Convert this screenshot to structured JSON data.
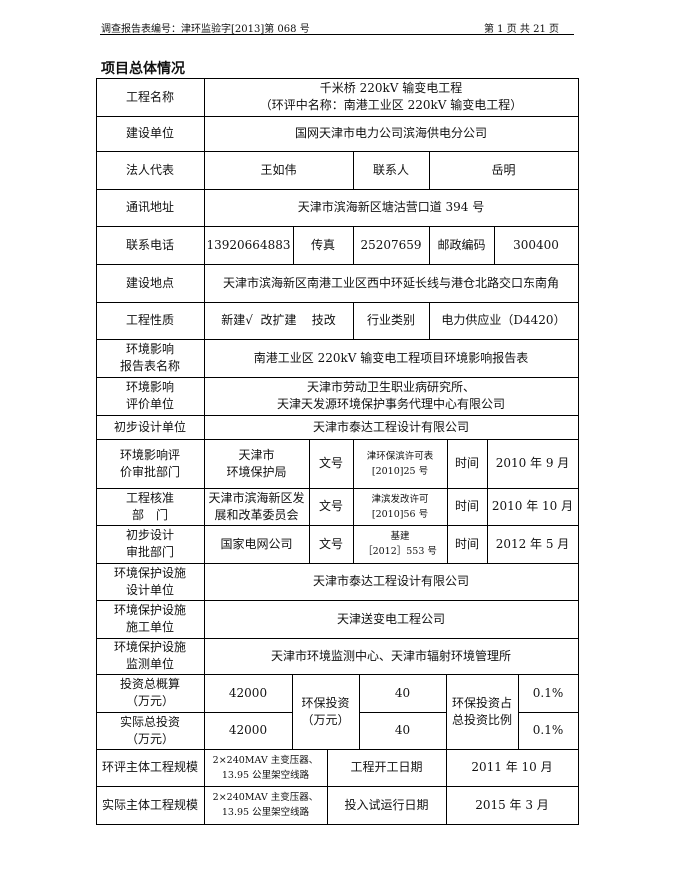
{
  "header": {
    "report_no": "调查报告表编号：津环监验字[2013]第 068 号",
    "page": "第 1 页 共 21 页"
  },
  "title": "项目总体情况",
  "rows": {
    "project_name": {
      "label": "工程名称",
      "value": "千米桥 220kV 输变电工程\n（环评中名称：南港工业区 220kV 输变电工程）"
    },
    "builder": {
      "label": "建设单位",
      "value": "国网天津市电力公司滨海供电分公司"
    },
    "legal": {
      "label": "法人代表",
      "value": "王如伟",
      "contact_label": "联系人",
      "contact": "岳明"
    },
    "address": {
      "label": "通讯地址",
      "value": "天津市滨海新区塘沽营口道 394 号"
    },
    "phone": {
      "label": "联系电话",
      "value": "13920664883",
      "fax_label": "传真",
      "fax": "25207659",
      "zip_label": "邮政编码",
      "zip": "300400"
    },
    "site": {
      "label": "建设地点",
      "value": "天津市滨海新区南港工业区西中环延长线与港仓北路交口东南角"
    },
    "nature": {
      "label": "工程性质",
      "value": "新建√  改扩建    技改",
      "industry_label": "行业类别",
      "industry": "电力供应业（D4420）"
    },
    "eia_name": {
      "label": "环境影响\n报告表名称",
      "value": "南港工业区 220kV 输变电工程项目环境影响报告表"
    },
    "eia_unit": {
      "label": "环境影响\n评价单位",
      "value": "天津市劳动卫生职业病研究所、\n天津天发源环境保护事务代理中心有限公司"
    },
    "prelim_design": {
      "label": "初步设计单位",
      "value": "天津市泰达工程设计有限公司"
    },
    "eia_approval": {
      "label": "环境影响评\n价审批部门",
      "dept": "天津市\n环境保护局",
      "doc_label": "文号",
      "doc": "津环保滨许可表\n[2010]25 号",
      "time_label": "时间",
      "time": "2010 年 9 月"
    },
    "project_approval": {
      "label": "工程核准\n部　门",
      "dept": "天津市滨海新区发\n展和改革委员会",
      "doc_label": "文号",
      "doc": "津滨发改许可\n[2010]56 号",
      "time_label": "时间",
      "time": "2010 年 10 月"
    },
    "design_approval": {
      "label": "初步设计\n审批部门",
      "dept": "国家电网公司",
      "doc_label": "文号",
      "doc": "基建\n［2012］553 号",
      "time_label": "时间",
      "time": "2012 年 5 月"
    },
    "env_design": {
      "label": "环境保护设施\n设计单位",
      "value": "天津市泰达工程设计有限公司"
    },
    "env_construct": {
      "label": "环境保护设施\n施工单位",
      "value": "天津送变电工程公司"
    },
    "env_monitor": {
      "label": "环境保护设施\n监测单位",
      "value": "天津市环境监测中心、天津市辐射环境管理所"
    },
    "investment": {
      "budget_label": "投资总概算\n（万元）",
      "budget": "42000",
      "actual_label": "实际总投资\n（万元）",
      "actual": "42000",
      "env_label": "环保投资\n（万元）",
      "env_budget": "40",
      "env_actual": "40",
      "ratio_label": "环保投资占\n总投资比例",
      "ratio_budget": "0.1%",
      "ratio_actual": "0.1%"
    },
    "eia_scale": {
      "label": "环评主体工程规模",
      "value": "2×240MAV 主变压器、\n13.95 公里架空线路",
      "date_label": "工程开工日期",
      "date": "2011 年 10 月"
    },
    "actual_scale": {
      "label": "实际主体工程规模",
      "value": "2×240MAV 主变压器、\n13.95 公里架空线路",
      "date_label": "投入试运行日期",
      "date": "2015 年 3 月"
    }
  }
}
